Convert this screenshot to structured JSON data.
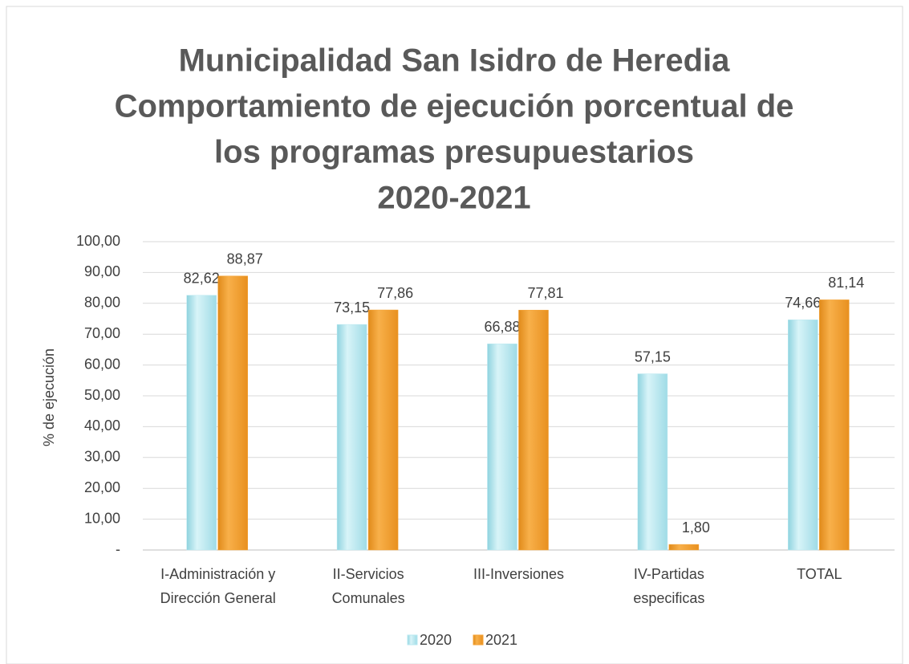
{
  "chart_data": {
    "type": "bar",
    "title": [
      "Municipalidad San Isidro de Heredia",
      "Comportamiento de ejecución porcentual de",
      "los programas presupuestarios",
      "2020-2021"
    ],
    "y_axis_label": "% de ejecución",
    "categories": [
      [
        "I-Administración y",
        "Dirección General"
      ],
      [
        "II-Servicios",
        "Comunales"
      ],
      [
        "III-Inversiones"
      ],
      [
        "IV-Partidas",
        "especificas"
      ],
      [
        "TOTAL"
      ]
    ],
    "series": [
      {
        "name": "2020",
        "color": "#b9e8f0",
        "values": [
          82.62,
          73.15,
          66.88,
          57.15,
          74.66
        ],
        "value_labels": [
          "82,62",
          "73,15",
          "66,88",
          "57,15",
          "74,66"
        ]
      },
      {
        "name": "2021",
        "color": "#f5a233",
        "values": [
          88.87,
          77.86,
          77.81,
          1.8,
          81.14
        ],
        "value_labels": [
          "88,87",
          "77,86",
          "77,81",
          "1,80",
          "81,14"
        ]
      }
    ],
    "ylim": [
      0,
      100
    ],
    "yticks": [
      {
        "value": 0,
        "label": "-"
      },
      {
        "value": 10,
        "label": "10,00"
      },
      {
        "value": 20,
        "label": "20,00"
      },
      {
        "value": 30,
        "label": "30,00"
      },
      {
        "value": 40,
        "label": "40,00"
      },
      {
        "value": 50,
        "label": "50,00"
      },
      {
        "value": 60,
        "label": "60,00"
      },
      {
        "value": 70,
        "label": "70,00"
      },
      {
        "value": 80,
        "label": "80,00"
      },
      {
        "value": 90,
        "label": "90,00"
      },
      {
        "value": 100,
        "label": "100,00"
      }
    ],
    "grid": true,
    "legend": "bottom"
  }
}
